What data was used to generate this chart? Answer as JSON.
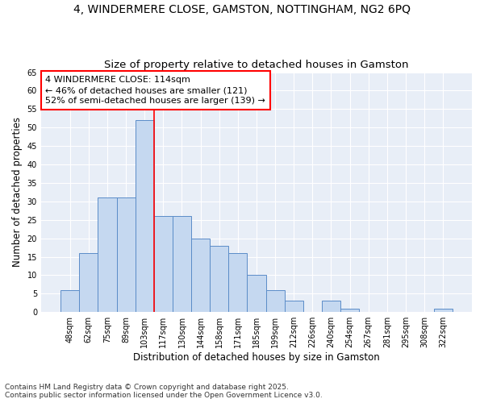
{
  "title": "4, WINDERMERE CLOSE, GAMSTON, NOTTINGHAM, NG2 6PQ",
  "subtitle": "Size of property relative to detached houses in Gamston",
  "xlabel": "Distribution of detached houses by size in Gamston",
  "ylabel": "Number of detached properties",
  "categories": [
    "48sqm",
    "62sqm",
    "75sqm",
    "89sqm",
    "103sqm",
    "117sqm",
    "130sqm",
    "144sqm",
    "158sqm",
    "171sqm",
    "185sqm",
    "199sqm",
    "212sqm",
    "226sqm",
    "240sqm",
    "254sqm",
    "267sqm",
    "281sqm",
    "295sqm",
    "308sqm",
    "322sqm"
  ],
  "values": [
    6,
    16,
    31,
    31,
    52,
    26,
    26,
    20,
    18,
    16,
    10,
    6,
    3,
    0,
    3,
    1,
    0,
    0,
    0,
    0,
    1
  ],
  "bar_color": "#c5d8f0",
  "bar_edge_color": "#5b8cc8",
  "annotation_line1": "4 WINDERMERE CLOSE: 114sqm",
  "annotation_line2": "← 46% of detached houses are smaller (121)",
  "annotation_line3": "52% of semi-detached houses are larger (139) →",
  "annotation_box_color": "white",
  "annotation_box_edge_color": "red",
  "vline_color": "red",
  "ylim": [
    0,
    65
  ],
  "yticks": [
    0,
    5,
    10,
    15,
    20,
    25,
    30,
    35,
    40,
    45,
    50,
    55,
    60,
    65
  ],
  "background_color": "#e8eef7",
  "grid_color": "white",
  "footer": "Contains HM Land Registry data © Crown copyright and database right 2025.\nContains public sector information licensed under the Open Government Licence v3.0.",
  "title_fontsize": 10,
  "subtitle_fontsize": 9.5,
  "xlabel_fontsize": 8.5,
  "ylabel_fontsize": 8.5,
  "tick_fontsize": 7,
  "annotation_fontsize": 8,
  "footer_fontsize": 6.5,
  "vline_x_index": 5
}
